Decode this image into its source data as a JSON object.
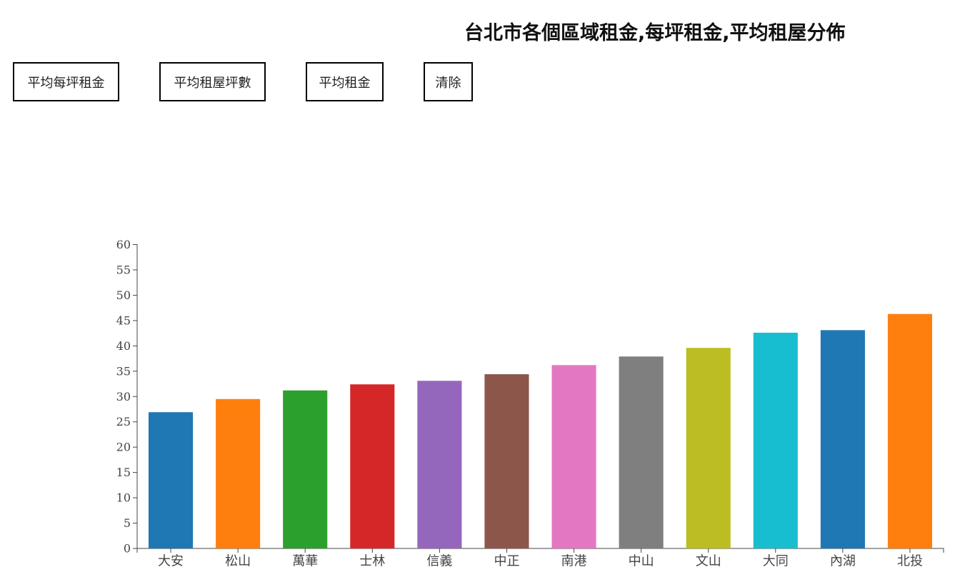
{
  "title": "台北市各個區域租金,每坪租金,平均租屋分佈",
  "buttons": [
    {
      "label": "平均每坪租金"
    },
    {
      "label": "平均租屋坪數"
    },
    {
      "label": "平均租金"
    },
    {
      "label": "清除"
    }
  ],
  "chart_data": {
    "type": "bar",
    "categories": [
      "大安",
      "松山",
      "萬華",
      "士林",
      "信義",
      "中正",
      "南港",
      "中山",
      "文山",
      "大同",
      "內湖",
      "北投"
    ],
    "values": [
      26.9,
      29.5,
      31.2,
      32.4,
      33.1,
      34.4,
      36.2,
      37.9,
      39.6,
      42.6,
      43.1,
      46.3
    ],
    "colors": [
      "#1f77b4",
      "#ff7f0e",
      "#2ca02c",
      "#d62728",
      "#9467bd",
      "#8c564b",
      "#e377c2",
      "#7f7f7f",
      "#bcbd22",
      "#17becf",
      "#1f77b4",
      "#ff7f0e"
    ],
    "yticks": [
      0,
      5,
      10,
      15,
      20,
      25,
      30,
      35,
      40,
      45,
      50,
      55,
      60
    ],
    "ylim": [
      0,
      60
    ],
    "title": "",
    "xlabel": "",
    "ylabel": "",
    "grid": false,
    "legend": "none"
  }
}
